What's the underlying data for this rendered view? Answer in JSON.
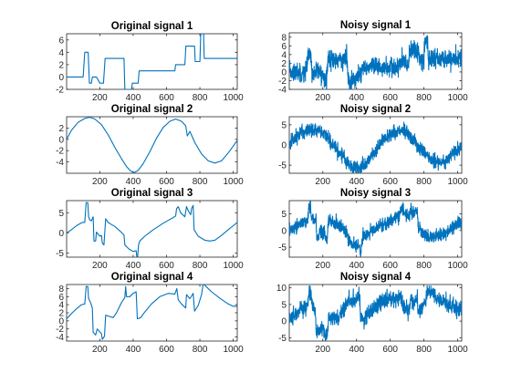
{
  "colors": {
    "line": "#0072BD",
    "axes": "#262626",
    "background": "#ffffff"
  },
  "chart_data": [
    {
      "type": "line",
      "title": "Original signal 1",
      "xlim": [
        1,
        1024
      ],
      "ylim": [
        -2,
        7
      ],
      "xticks": [
        200,
        400,
        600,
        800,
        1000
      ],
      "yticks": [
        -2,
        0,
        2,
        4,
        6
      ],
      "kind": "steps",
      "segments": [
        [
          1,
          0
        ],
        [
          100,
          0
        ],
        [
          110,
          4
        ],
        [
          130,
          4
        ],
        [
          138,
          -1
        ],
        [
          150,
          -1
        ],
        [
          155,
          0
        ],
        [
          180,
          0
        ],
        [
          200,
          -1
        ],
        [
          222,
          -1
        ],
        [
          232,
          3
        ],
        [
          345,
          3
        ],
        [
          350,
          -2
        ],
        [
          390,
          -2
        ],
        [
          395,
          -1
        ],
        [
          430,
          -1
        ],
        [
          436,
          1
        ],
        [
          650,
          1
        ],
        [
          655,
          2
        ],
        [
          710,
          2
        ],
        [
          716,
          5
        ],
        [
          768,
          5
        ],
        [
          772,
          2.5
        ],
        [
          800,
          2.5
        ],
        [
          805,
          7
        ],
        [
          822,
          7
        ],
        [
          826,
          3
        ],
        [
          1024,
          3
        ]
      ]
    },
    {
      "type": "line",
      "title": "Noisy signal 1",
      "xlim": [
        1,
        1024
      ],
      "ylim": [
        -4,
        9
      ],
      "xticks": [
        200,
        400,
        600,
        800,
        1000
      ],
      "yticks": [
        -4,
        -2,
        0,
        2,
        4,
        6,
        8
      ],
      "kind": "noisy",
      "base": 0,
      "noise": 1.1
    },
    {
      "type": "line",
      "title": "Original signal 2",
      "xlim": [
        1,
        1024
      ],
      "ylim": [
        -6,
        4
      ],
      "xticks": [
        200,
        400,
        600,
        800,
        1000
      ],
      "yticks": [
        -4,
        -2,
        0,
        2
      ],
      "kind": "points",
      "points": [
        [
          1,
          0
        ],
        [
          30,
          1.6
        ],
        [
          70,
          3
        ],
        [
          110,
          3.7
        ],
        [
          140,
          3.9
        ],
        [
          170,
          3.6
        ],
        [
          210,
          2.6
        ],
        [
          250,
          0.8
        ],
        [
          290,
          -1.4
        ],
        [
          330,
          -3.4
        ],
        [
          360,
          -4.8
        ],
        [
          385,
          -5.6
        ],
        [
          405,
          -5.9
        ],
        [
          430,
          -5.5
        ],
        [
          460,
          -4.3
        ],
        [
          500,
          -2.2
        ],
        [
          540,
          0.2
        ],
        [
          580,
          2.1
        ],
        [
          620,
          3.2
        ],
        [
          655,
          3.6
        ],
        [
          690,
          3.2
        ],
        [
          715,
          2.4
        ],
        [
          725,
          0.6
        ],
        [
          740,
          1.4
        ],
        [
          770,
          -0.6
        ],
        [
          810,
          -2.6
        ],
        [
          850,
          -3.8
        ],
        [
          890,
          -4.2
        ],
        [
          930,
          -3.8
        ],
        [
          970,
          -2.4
        ],
        [
          1000,
          -1.2
        ],
        [
          1024,
          -0.2
        ]
      ]
    },
    {
      "type": "line",
      "title": "Noisy signal 2",
      "xlim": [
        1,
        1024
      ],
      "ylim": [
        -7,
        7
      ],
      "xticks": [
        200,
        400,
        600,
        800,
        1000
      ],
      "yticks": [
        -5,
        0,
        5
      ],
      "kind": "noisy",
      "base": 2,
      "noise": 0.9
    },
    {
      "type": "line",
      "title": "Original signal 3",
      "xlim": [
        1,
        1024
      ],
      "ylim": [
        -6,
        8
      ],
      "xticks": [
        200,
        400,
        600,
        800,
        1000
      ],
      "yticks": [
        -5,
        0,
        5
      ],
      "kind": "points",
      "points": [
        [
          1,
          0
        ],
        [
          30,
          0.8
        ],
        [
          60,
          1.8
        ],
        [
          95,
          2.6
        ],
        [
          110,
          2.6
        ],
        [
          118,
          7.5
        ],
        [
          128,
          7.5
        ],
        [
          133,
          4
        ],
        [
          140,
          3.2
        ],
        [
          150,
          3
        ],
        [
          160,
          4
        ],
        [
          165,
          -2
        ],
        [
          175,
          -2
        ],
        [
          180,
          0.2
        ],
        [
          200,
          -0.8
        ],
        [
          210,
          -0.6
        ],
        [
          215,
          -2.5
        ],
        [
          225,
          -3
        ],
        [
          235,
          3.5
        ],
        [
          250,
          2.6
        ],
        [
          265,
          2.2
        ],
        [
          290,
          1.6
        ],
        [
          320,
          0.5
        ],
        [
          345,
          -0.5
        ],
        [
          350,
          -3
        ],
        [
          375,
          -4
        ],
        [
          400,
          -4.6
        ],
        [
          418,
          -4.4
        ],
        [
          425,
          -7
        ],
        [
          432,
          -3
        ],
        [
          440,
          -2
        ],
        [
          470,
          -0.8
        ],
        [
          520,
          0.8
        ],
        [
          580,
          2.4
        ],
        [
          640,
          3.8
        ],
        [
          655,
          4.2
        ],
        [
          660,
          6
        ],
        [
          670,
          6.5
        ],
        [
          685,
          5
        ],
        [
          710,
          4
        ],
        [
          720,
          6.5
        ],
        [
          730,
          5.5
        ],
        [
          745,
          4.5
        ],
        [
          750,
          6
        ],
        [
          760,
          6.8
        ],
        [
          765,
          0.8
        ],
        [
          790,
          -0.8
        ],
        [
          830,
          -1.8
        ],
        [
          860,
          -2
        ],
        [
          890,
          -1.8
        ],
        [
          930,
          -0.6
        ],
        [
          970,
          0.8
        ],
        [
          1000,
          1.8
        ],
        [
          1024,
          2.6
        ]
      ]
    },
    {
      "type": "line",
      "title": "Noisy signal 3",
      "xlim": [
        1,
        1024
      ],
      "ylim": [
        -8,
        9
      ],
      "xticks": [
        200,
        400,
        600,
        800,
        1000
      ],
      "yticks": [
        -5,
        0,
        5
      ],
      "kind": "noisy",
      "base": 4,
      "noise": 1.0
    },
    {
      "type": "line",
      "title": "Original signal 4",
      "xlim": [
        1,
        1024
      ],
      "ylim": [
        -5,
        9
      ],
      "xticks": [
        200,
        400,
        600,
        800,
        1000
      ],
      "yticks": [
        -4,
        -2,
        0,
        2,
        4,
        6,
        8
      ],
      "kind": "points",
      "points": [
        [
          1,
          0.5
        ],
        [
          30,
          1.8
        ],
        [
          60,
          3
        ],
        [
          90,
          4
        ],
        [
          110,
          4.2
        ],
        [
          118,
          8.5
        ],
        [
          128,
          8.5
        ],
        [
          133,
          5.5
        ],
        [
          145,
          4.5
        ],
        [
          155,
          3.2
        ],
        [
          160,
          -2.8
        ],
        [
          175,
          -3.5
        ],
        [
          185,
          -2
        ],
        [
          210,
          -3.2
        ],
        [
          215,
          -4.6
        ],
        [
          228,
          -3.8
        ],
        [
          235,
          1.4
        ],
        [
          250,
          1.2
        ],
        [
          280,
          0.8
        ],
        [
          300,
          2
        ],
        [
          330,
          4.5
        ],
        [
          350,
          5.8
        ],
        [
          355,
          8.5
        ],
        [
          360,
          6
        ],
        [
          380,
          6
        ],
        [
          400,
          6.8
        ],
        [
          418,
          7.2
        ],
        [
          425,
          0.5
        ],
        [
          445,
          0.8
        ],
        [
          470,
          2.2
        ],
        [
          510,
          4.2
        ],
        [
          560,
          6
        ],
        [
          610,
          6.8
        ],
        [
          650,
          6.6
        ],
        [
          662,
          8
        ],
        [
          670,
          5.2
        ],
        [
          690,
          4.2
        ],
        [
          715,
          3.2
        ],
        [
          720,
          6.5
        ],
        [
          740,
          5.5
        ],
        [
          760,
          6.8
        ],
        [
          768,
          2.4
        ],
        [
          790,
          3.8
        ],
        [
          810,
          6.5
        ],
        [
          820,
          9.2
        ],
        [
          835,
          8.6
        ],
        [
          870,
          7.2
        ],
        [
          920,
          5.6
        ],
        [
          970,
          4.2
        ],
        [
          1000,
          3.6
        ],
        [
          1024,
          3.6
        ]
      ]
    },
    {
      "type": "line",
      "title": "Noisy signal 4",
      "xlim": [
        1,
        1024
      ],
      "ylim": [
        -6,
        11
      ],
      "xticks": [
        200,
        400,
        600,
        800,
        1000
      ],
      "yticks": [
        -5,
        0,
        5,
        10
      ],
      "kind": "noisy",
      "base": 6,
      "noise": 1.2
    }
  ]
}
